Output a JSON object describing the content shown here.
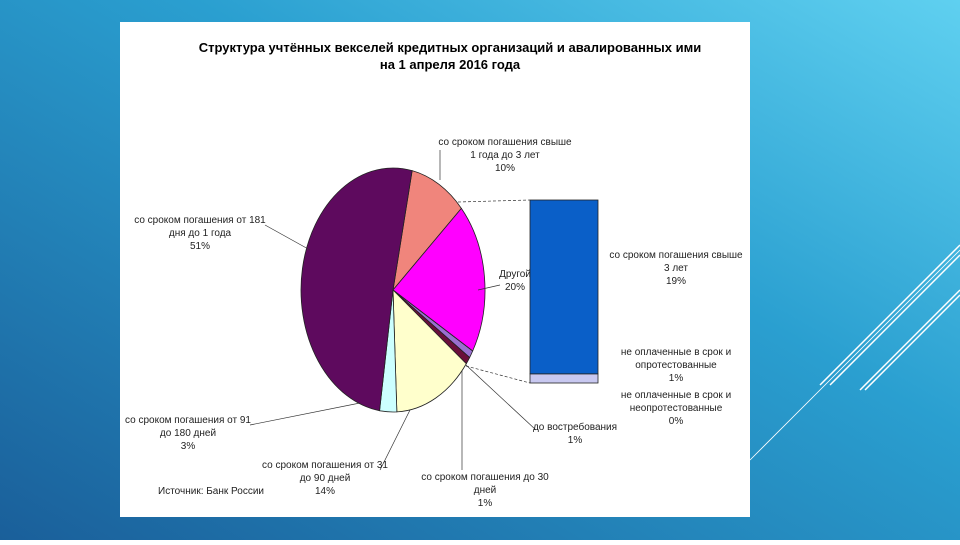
{
  "chart_data": {
    "type": "pie-of-bar",
    "title_lines": [
      "Структура учтённых векселей кредитных организаций и авалированных ими",
      "на 1 апреля 2016 года"
    ],
    "source": "Источник: Банк России",
    "slices": [
      {
        "label_lines": [
          "со сроком погашения свыше",
          "1 года до 3 лет"
        ],
        "value": 10,
        "value_label": "10%",
        "color": "#f0857c"
      },
      {
        "label_lines": [
          "Другой"
        ],
        "value": 20,
        "value_label": "20%",
        "color": "#ff00ff"
      },
      {
        "label_lines": [
          "до востребования"
        ],
        "value": 1,
        "value_label": "1%",
        "color": "#9a6fd0"
      },
      {
        "label_lines": [
          "со сроком погашения до 30",
          "дней"
        ],
        "value": 1,
        "value_label": "1%",
        "color": "#6a0f3a"
      },
      {
        "label_lines": [
          "со сроком погашения от 31",
          "до 90 дней"
        ],
        "value": 14,
        "value_label": "14%",
        "color": "#ffffcc"
      },
      {
        "label_lines": [
          "со сроком погашения от 91",
          "до 180 дней"
        ],
        "value": 3,
        "value_label": "3%",
        "color": "#ccffff"
      },
      {
        "label_lines": [
          "со сроком погашения от 181",
          "дня до 1 года"
        ],
        "value": 51,
        "value_label": "51%",
        "color": "#5e0a5e"
      }
    ],
    "bar": [
      {
        "label_lines": [
          "со сроком погашения свыше",
          "3 лет"
        ],
        "value": 19,
        "value_label": "19%",
        "color": "#0a5fc8"
      },
      {
        "label_lines": [
          "не оплаченные в срок и",
          "опротестованные"
        ],
        "value": 1,
        "value_label": "1%",
        "color": "#c8c8f0"
      },
      {
        "label_lines": [
          "не оплаченные в срок и",
          "неопротестованные"
        ],
        "value": 0,
        "value_label": "0%",
        "color": "#0a0a60"
      }
    ]
  }
}
